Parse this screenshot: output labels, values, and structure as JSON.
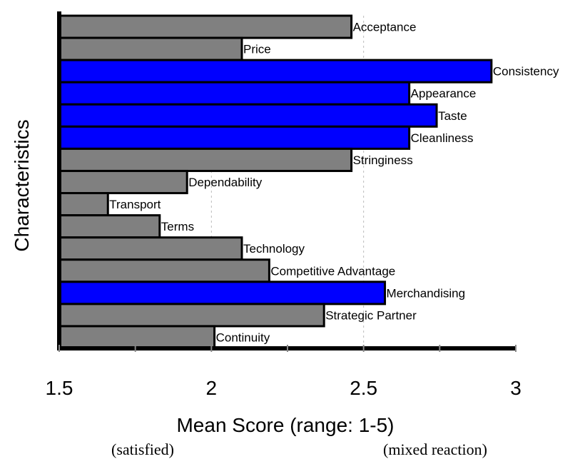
{
  "chart_data": {
    "type": "bar",
    "orientation": "horizontal",
    "xlabel": "Mean Score (range: 1-5)",
    "ylabel": "Characteristics",
    "xlim": [
      1.5,
      3
    ],
    "xticks": [
      "1.5",
      "2",
      "2.5",
      "3"
    ],
    "grid": "vertical dashed at 2 and 2.5",
    "annotations": [
      "(satisfied)",
      "(mixed reaction)"
    ],
    "colors": {
      "default": "#808080",
      "highlight": "#0000ff"
    },
    "bars": [
      {
        "label": "Acceptance",
        "value": 2.46,
        "highlight": false
      },
      {
        "label": "Price",
        "value": 2.1,
        "highlight": false
      },
      {
        "label": "Consistency",
        "value": 2.92,
        "highlight": true
      },
      {
        "label": "Appearance",
        "value": 2.65,
        "highlight": true
      },
      {
        "label": "Taste",
        "value": 2.74,
        "highlight": true
      },
      {
        "label": "Cleanliness",
        "value": 2.65,
        "highlight": true
      },
      {
        "label": "Stringiness",
        "value": 2.46,
        "highlight": false
      },
      {
        "label": "Dependability",
        "value": 1.92,
        "highlight": false
      },
      {
        "label": "Transport",
        "value": 1.66,
        "highlight": false
      },
      {
        "label": "Terms",
        "value": 1.83,
        "highlight": false
      },
      {
        "label": "Technology",
        "value": 2.1,
        "highlight": false
      },
      {
        "label": "Competitive Advantage",
        "value": 2.19,
        "highlight": false
      },
      {
        "label": "Merchandising",
        "value": 2.57,
        "highlight": true
      },
      {
        "label": "Strategic Partner",
        "value": 2.37,
        "highlight": false
      },
      {
        "label": "Continuity",
        "value": 2.01,
        "highlight": false
      }
    ]
  }
}
